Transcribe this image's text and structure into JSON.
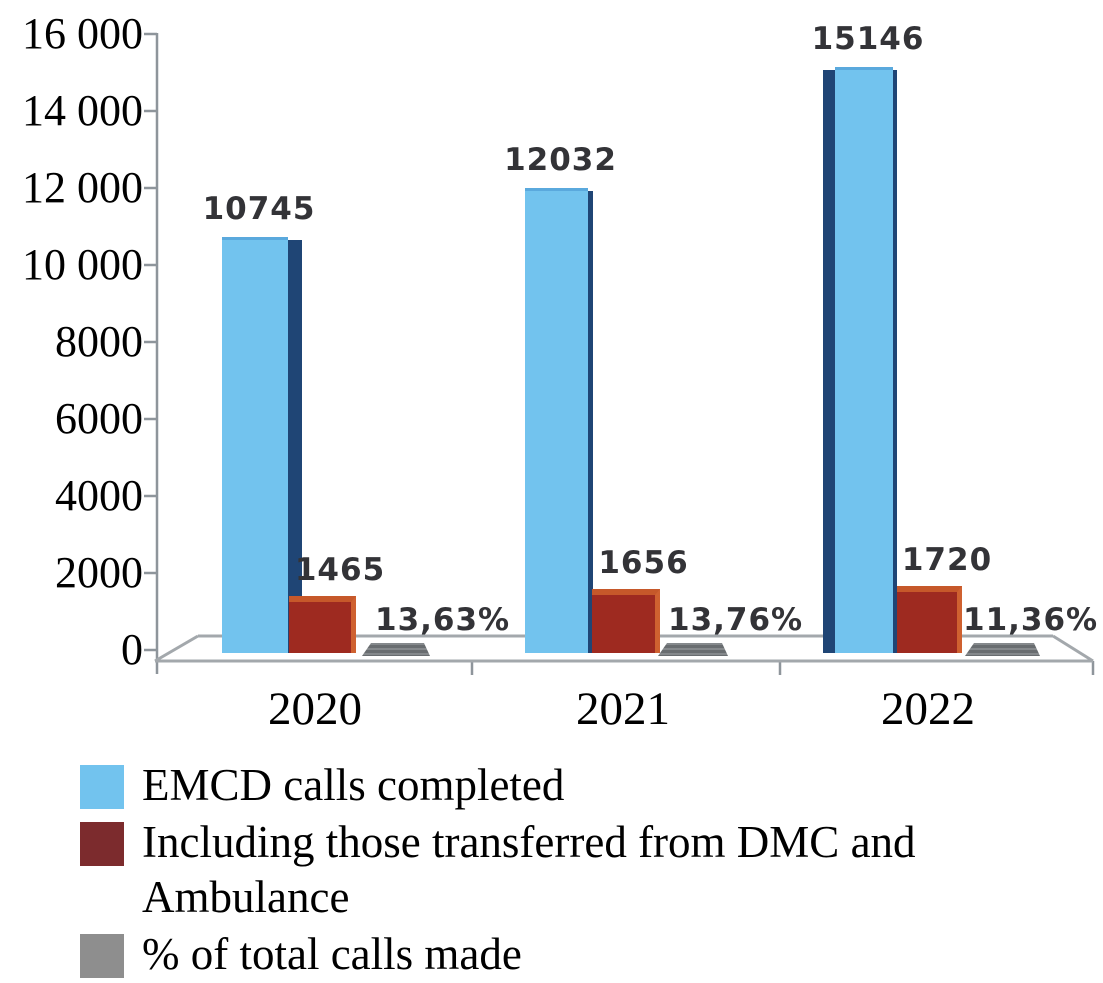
{
  "chart_data": {
    "type": "bar",
    "title": "",
    "categories": [
      "2020",
      "2021",
      "2022"
    ],
    "series": [
      {
        "name": "EMCD calls completed",
        "color": "#72c3ee",
        "values": [
          10745,
          12032,
          15146
        ],
        "labels": [
          "10745",
          "12032",
          "15146"
        ]
      },
      {
        "name": "Including those transferred from DMC and Ambulance",
        "color": "#9e2a20",
        "values": [
          1465,
          1656,
          1720
        ],
        "labels": [
          "1465",
          "1656",
          "1720"
        ]
      },
      {
        "name": "% of total calls made",
        "color": "#6f7274",
        "values": [
          13.63,
          13.76,
          11.36
        ],
        "labels": [
          "13,63%",
          "13,76%",
          "11,36%"
        ]
      }
    ],
    "ylim": [
      0,
      16000
    ],
    "y_ticks": [
      "16 000",
      "14 000",
      "12 000",
      "10 000",
      "8000",
      "6000",
      "4000",
      "2000",
      "0"
    ],
    "xlabel": "",
    "ylabel": "",
    "grid": false,
    "decimal_separator": ",",
    "legend_position": "bottom-left",
    "style": "3d-perspective-floor"
  },
  "legend": {
    "items": [
      {
        "label": "EMCD calls completed",
        "color": "#72c3ee"
      },
      {
        "label": "Including those transferred from DMC and Ambulance",
        "color": "#7c2b2d"
      },
      {
        "label": "% of total calls made",
        "color": "#8e8e8e"
      }
    ]
  }
}
